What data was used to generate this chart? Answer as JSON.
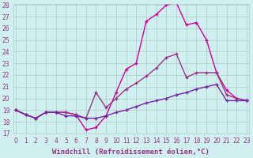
{
  "xlabel": "Windchill (Refroidissement éolien,°C)",
  "ylabel": "",
  "background_color": "#cff0ee",
  "grid_color": "#b0c8c8",
  "line1_color": "#cc00aa",
  "line2_color": "#993388",
  "line3_color": "#7722aa",
  "xlim": [
    0,
    23
  ],
  "ylim": [
    17,
    28
  ],
  "yticks": [
    17,
    18,
    19,
    20,
    21,
    22,
    23,
    24,
    25,
    26,
    27,
    28
  ],
  "xticks": [
    0,
    1,
    2,
    3,
    4,
    5,
    6,
    7,
    8,
    9,
    10,
    11,
    12,
    13,
    14,
    15,
    16,
    17,
    18,
    19,
    20,
    21,
    22,
    23
  ],
  "line1_x": [
    0,
    1,
    2,
    3,
    4,
    5,
    6,
    7,
    8,
    9,
    10,
    11,
    12,
    13,
    14,
    15,
    16,
    17,
    18,
    19,
    20,
    21,
    22,
    23
  ],
  "line1_y": [
    19.0,
    18.6,
    18.3,
    18.8,
    18.8,
    18.8,
    18.6,
    17.3,
    17.5,
    18.5,
    20.5,
    22.5,
    23.0,
    26.6,
    27.2,
    28.0,
    28.2,
    26.3,
    26.5,
    25.0,
    22.2,
    20.7,
    20.0,
    19.8
  ],
  "line2_x": [
    0,
    1,
    2,
    3,
    4,
    5,
    6,
    7,
    8,
    9,
    10,
    11,
    12,
    13,
    14,
    15,
    16,
    17,
    18,
    19,
    20,
    21,
    22,
    23
  ],
  "line2_y": [
    19.0,
    18.6,
    18.3,
    18.8,
    18.8,
    18.8,
    18.6,
    18.3,
    20.5,
    19.2,
    20.0,
    20.8,
    21.3,
    21.9,
    22.6,
    23.5,
    23.8,
    21.8,
    22.2,
    22.2,
    22.2,
    20.3,
    20.0,
    19.8
  ],
  "line3_x": [
    0,
    1,
    2,
    3,
    4,
    5,
    6,
    7,
    8,
    9,
    10,
    11,
    12,
    13,
    14,
    15,
    16,
    17,
    18,
    19,
    20,
    21,
    22,
    23
  ],
  "line3_y": [
    19.0,
    18.6,
    18.3,
    18.8,
    18.8,
    18.5,
    18.5,
    18.3,
    18.3,
    18.5,
    18.8,
    19.0,
    19.3,
    19.6,
    19.8,
    20.0,
    20.3,
    20.5,
    20.8,
    21.0,
    21.2,
    19.8,
    19.8,
    19.8
  ],
  "marker": "+",
  "markersize": 3,
  "linewidth": 1.0,
  "tick_fontsize": 5.5,
  "label_fontsize": 6.5
}
